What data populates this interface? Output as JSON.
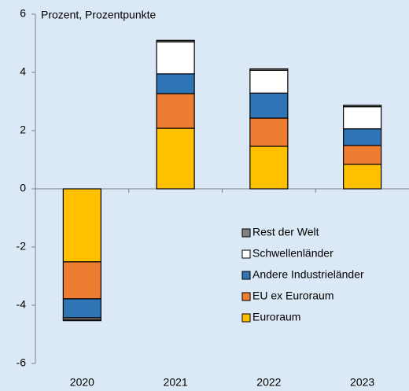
{
  "chart_data": {
    "type": "stacked_bar",
    "subtitle": "Prozent, Prozentpunkte",
    "categories": [
      "2020",
      "2021",
      "2022",
      "2023"
    ],
    "series": [
      {
        "name": "Euroraum",
        "color": "#ffc000",
        "values": [
          -2.51,
          2.08,
          1.46,
          0.84
        ]
      },
      {
        "name": "EU ex Euroraum",
        "color": "#ed7d31",
        "values": [
          -1.27,
          1.19,
          0.97,
          0.65
        ]
      },
      {
        "name": "Andere Industrieländer",
        "color": "#2e75b6",
        "values": [
          -0.65,
          0.68,
          0.86,
          0.57
        ]
      },
      {
        "name": "Schwellenländer",
        "color": "#ffffff",
        "values": [
          -0.05,
          1.1,
          0.78,
          0.76
        ]
      },
      {
        "name": "Rest der Welt",
        "color": "#808080",
        "values": [
          -0.05,
          0.05,
          0.05,
          0.05
        ]
      }
    ],
    "ylim": [
      -6,
      6
    ],
    "yticks": [
      -6,
      -4,
      -2,
      0,
      2,
      4,
      6
    ]
  }
}
